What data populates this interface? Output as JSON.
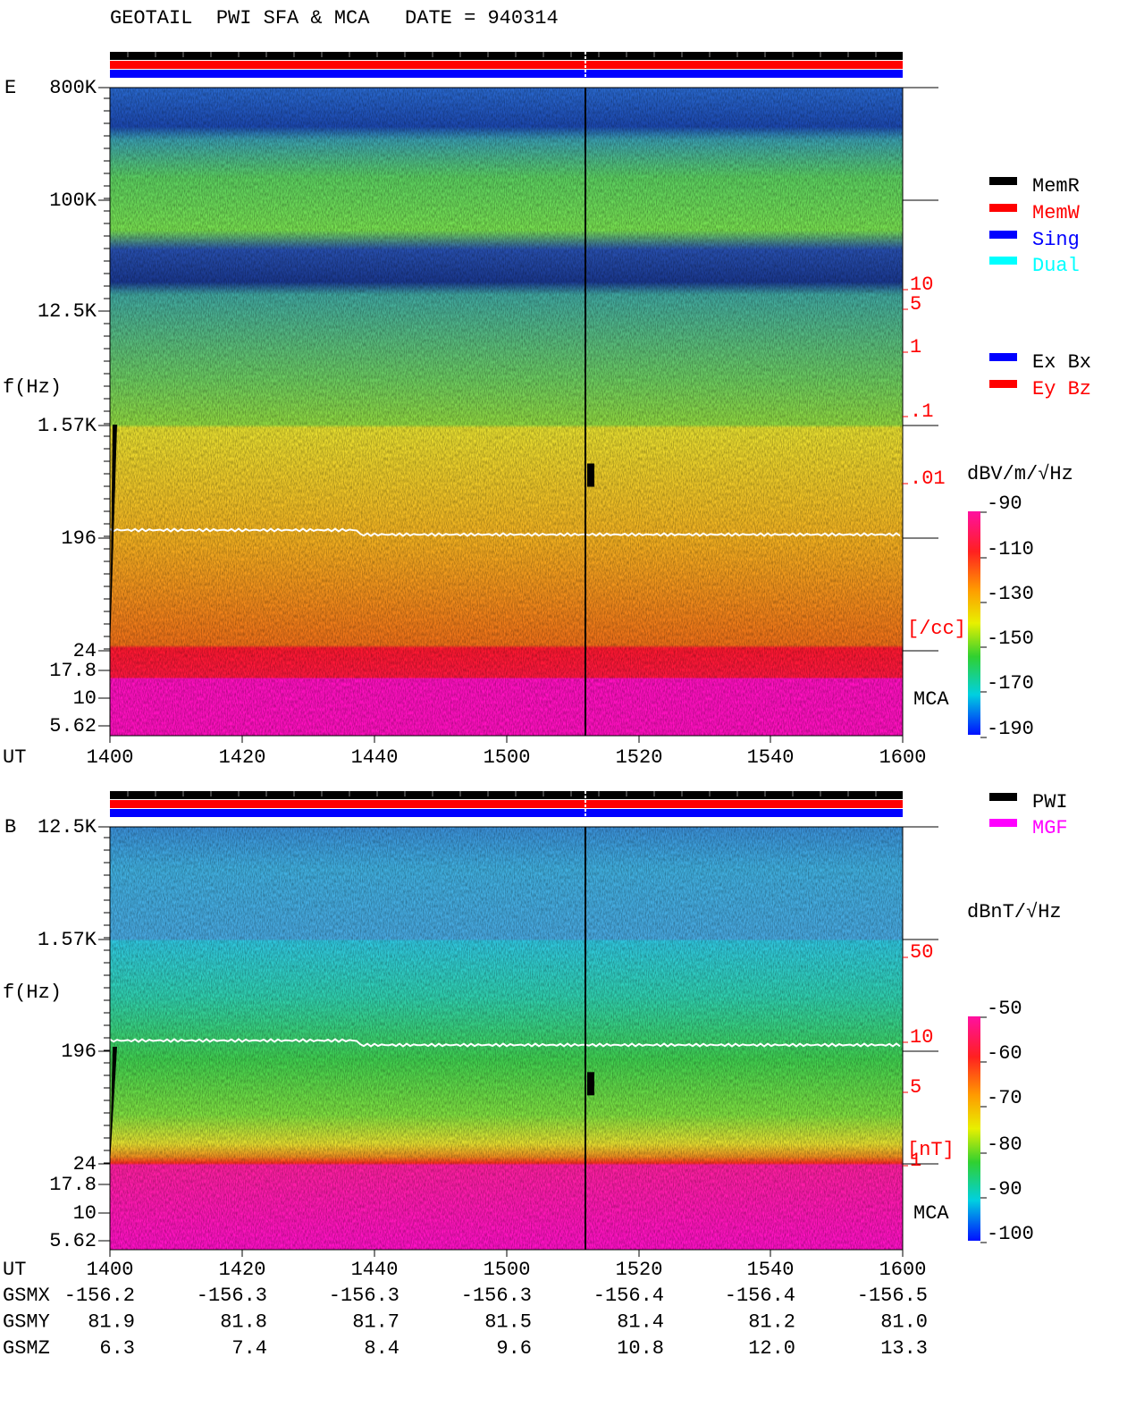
{
  "title": "GEOTAIL  PWI SFA & MCA   DATE = 940314",
  "panels": [
    {
      "label": "E",
      "y_axis_label": "f(Hz)",
      "y_ticks": [
        "800K",
        "100K",
        "12.5K",
        "1.57K",
        "196",
        "24",
        "17.8",
        "10",
        "5.62"
      ],
      "x_axis_label": "UT",
      "x_ticks": [
        "1400",
        "1420",
        "1440",
        "1500",
        "1520",
        "1540",
        "1600"
      ],
      "density_scale": [
        "10",
        "5",
        "1",
        ".1",
        ".01"
      ],
      "density_unit": "[/cc]",
      "mca_label": "MCA",
      "colorbar_unit": "dBV/m/√Hz",
      "colorbar_ticks": [
        "-90",
        "-110",
        "-130",
        "-150",
        "-170",
        "-190"
      ],
      "legend": [
        {
          "label": "MemR",
          "color": "#000000"
        },
        {
          "label": "MemW",
          "color": "#ff0000"
        },
        {
          "label": "Sing",
          "color": "#0000ff"
        },
        {
          "label": "Dual",
          "color": "#00ffff"
        }
      ],
      "legend2": [
        {
          "label": "Ex Bx",
          "color": "#0000ff"
        },
        {
          "label": "Ey Bz",
          "color": "#ff0000"
        }
      ]
    },
    {
      "label": "B",
      "y_axis_label": "f(Hz)",
      "y_ticks": [
        "12.5K",
        "1.57K",
        "196",
        "24",
        "17.8",
        "10",
        "5.62"
      ],
      "density_scale": [
        "50",
        "10",
        "5",
        "1"
      ],
      "density_unit": "[nT]",
      "mca_label": "MCA",
      "colorbar_unit": "dBnT/√Hz",
      "colorbar_ticks": [
        "-50",
        "-60",
        "-70",
        "-80",
        "-90",
        "-100"
      ],
      "legend": [
        {
          "label": "PWI",
          "color": "#000000"
        },
        {
          "label": "MGF",
          "color": "#ff00ff"
        }
      ]
    }
  ],
  "orbit": {
    "ut_label": "UT",
    "ut": [
      "1400",
      "1420",
      "1440",
      "1500",
      "1520",
      "1540",
      "1600"
    ],
    "rows": [
      {
        "label": "GSMX",
        "values": [
          "-156.2",
          "-156.3",
          "-156.3",
          "-156.3",
          "-156.4",
          "-156.4",
          "-156.5"
        ]
      },
      {
        "label": "GSMY",
        "values": [
          "81.9",
          "81.8",
          "81.7",
          "81.5",
          "81.4",
          "81.2",
          "81.0"
        ]
      },
      {
        "label": "GSMZ",
        "values": [
          "6.3",
          "7.4",
          "8.4",
          "9.6",
          "10.8",
          "12.0",
          "13.3"
        ]
      }
    ]
  }
}
